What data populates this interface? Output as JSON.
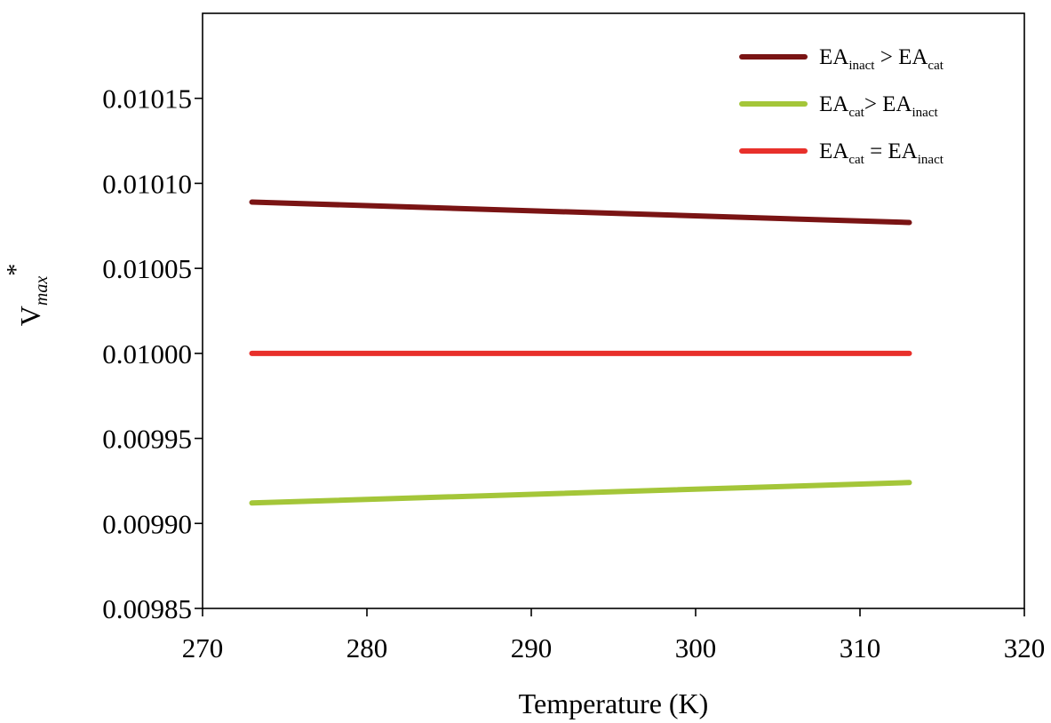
{
  "chart_data": {
    "type": "line",
    "xlabel": "Temperature (K)",
    "ylabel": {
      "base": "V",
      "sub": "max",
      "sup": "*"
    },
    "xlim": [
      270,
      320
    ],
    "ylim": [
      0.00985,
      0.0102
    ],
    "xticks": [
      270,
      280,
      290,
      300,
      310,
      320
    ],
    "xtick_labels": [
      "270",
      "280",
      "290",
      "300",
      "310",
      "320"
    ],
    "yticks": [
      0.00985,
      0.0099,
      0.00995,
      0.01,
      0.01005,
      0.0101,
      0.01015
    ],
    "ytick_labels": [
      "0.00985",
      "0.00990",
      "0.00995",
      "0.01000",
      "0.01005",
      "0.01010",
      "0.01015"
    ],
    "grid": false,
    "legend_position": "top-right",
    "series": [
      {
        "key": "inact-gt-cat",
        "color": "#7a1414",
        "legend": [
          {
            "t": "EA"
          },
          {
            "t": "inact",
            "sub": true
          },
          {
            "t": " > EA"
          },
          {
            "t": "cat",
            "sub": true
          }
        ],
        "x": [
          273,
          313
        ],
        "y": [
          0.010089,
          0.010077
        ]
      },
      {
        "key": "cat-gt-inact",
        "color": "#a4c639",
        "legend": [
          {
            "t": "EA"
          },
          {
            "t": "cat",
            "sub": true
          },
          {
            "t": "> EA"
          },
          {
            "t": "inact",
            "sub": true
          }
        ],
        "x": [
          273,
          313
        ],
        "y": [
          0.009912,
          0.009924
        ]
      },
      {
        "key": "cat-eq-inact",
        "color": "#e8302b",
        "legend": [
          {
            "t": "EA"
          },
          {
            "t": "cat",
            "sub": true
          },
          {
            "t": " = EA"
          },
          {
            "t": "inact",
            "sub": true
          }
        ],
        "x": [
          273,
          313
        ],
        "y": [
          0.01,
          0.01
        ]
      }
    ]
  }
}
